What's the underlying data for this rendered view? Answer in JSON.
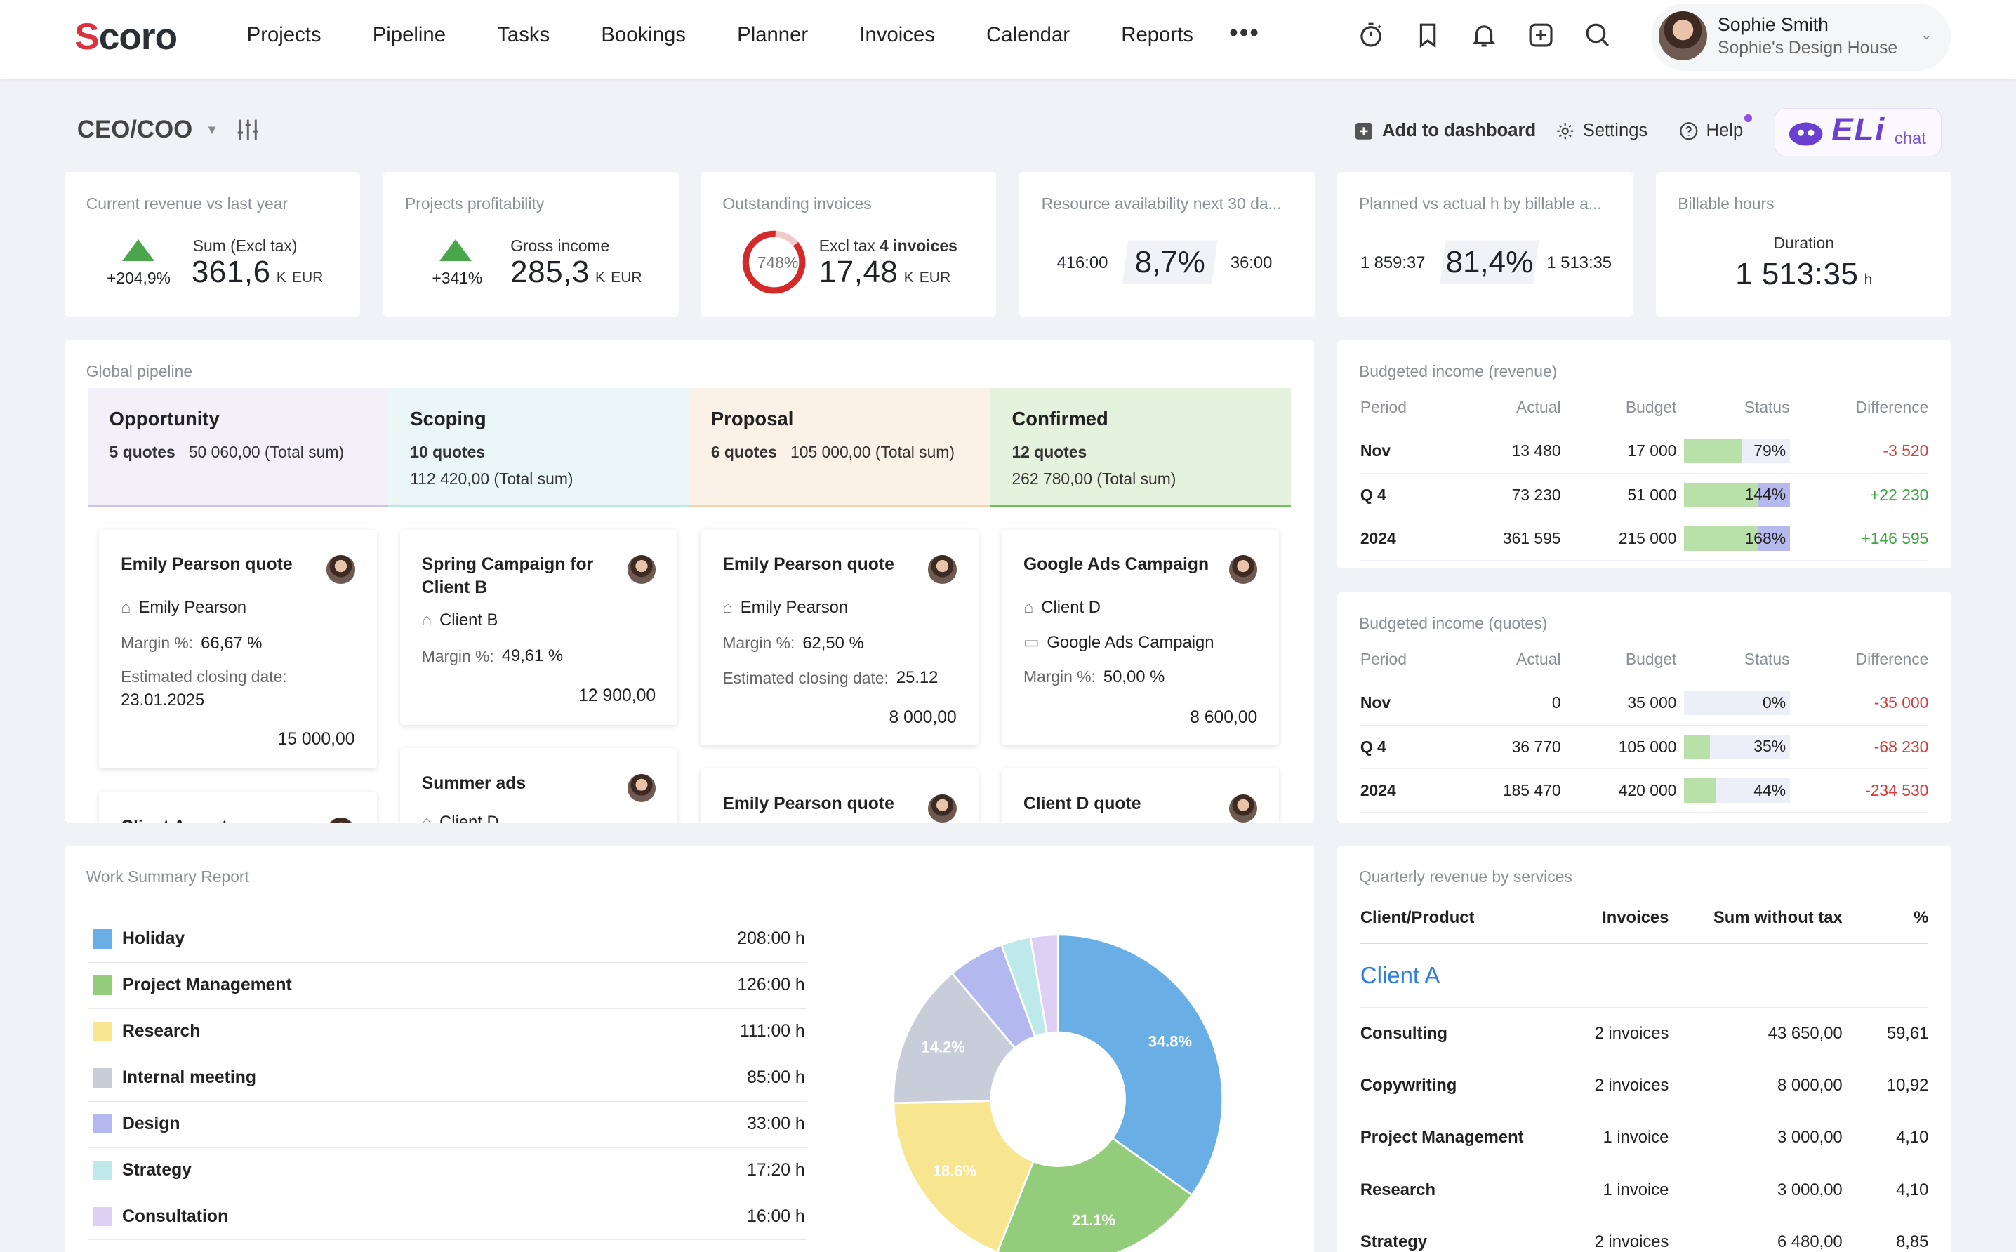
{
  "nav": {
    "logo": "Scoro",
    "items": [
      "Projects",
      "Pipeline",
      "Tasks",
      "Bookings",
      "Planner",
      "Invoices",
      "Calendar",
      "Reports"
    ],
    "more": "•••"
  },
  "user": {
    "name": "Sophie Smith",
    "company": "Sophie's Design House"
  },
  "dashboard": {
    "title": "CEO/COO",
    "add": "Add to dashboard",
    "settings": "Settings",
    "help": "Help",
    "eli": "ELi",
    "eli_sub": "chat"
  },
  "kpis": [
    {
      "title": "Current revenue vs last year",
      "change": "+204,9%",
      "label": "Sum (Excl tax)",
      "value": "361,6",
      "unit": "K",
      "currency": "EUR"
    },
    {
      "title": "Projects profitability",
      "change": "+341%",
      "label": "Gross income",
      "value": "285,3",
      "unit": "K",
      "currency": "EUR"
    },
    {
      "title": "Outstanding invoices",
      "ring": "748%",
      "label_pre": "Excl tax",
      "label_bold": "4 invoices",
      "value": "17,48",
      "unit": "K",
      "currency": "EUR"
    },
    {
      "title": "Resource availability next 30 da...",
      "left": "416:00",
      "value": "8,7%",
      "right": "36:00"
    },
    {
      "title": "Planned vs actual h by billable a...",
      "left": "1 859:37",
      "value": "81,4%",
      "right": "1 513:35"
    },
    {
      "title": "Billable hours",
      "label": "Duration",
      "value": "1 513:35",
      "unit": "h"
    }
  ],
  "pipeline": {
    "title": "Global pipeline",
    "columns": [
      {
        "name": "Opportunity",
        "count": "5 quotes",
        "sum": "50 060,00 (Total sum)"
      },
      {
        "name": "Scoping",
        "count": "10 quotes",
        "sum": "112 420,00 (Total sum)"
      },
      {
        "name": "Proposal",
        "count": "6 quotes",
        "sum": "105 000,00 (Total sum)"
      },
      {
        "name": "Confirmed",
        "count": "12 quotes",
        "sum": "262 780,00 (Total sum)"
      }
    ],
    "cards": [
      {
        "title": "Emily Pearson quote",
        "client": "Emily Pearson",
        "margin_label": "Margin %:",
        "margin": "66,67 %",
        "close_label": "Estimated closing date:",
        "close": "23.01.2025",
        "amount": "15 000,00"
      },
      {
        "title": "Client A quote"
      },
      {
        "title": "Spring Campaign for Client B",
        "client": "Client B",
        "margin_label": "Margin %:",
        "margin": "49,61 %",
        "amount": "12 900,00"
      },
      {
        "title": "Summer ads",
        "client": "Client D"
      },
      {
        "title": "Emily Pearson quote",
        "client": "Emily Pearson",
        "margin_label": "Margin %:",
        "margin": "62,50 %",
        "close_label": "Estimated closing date:",
        "close": "25.12",
        "amount": "8 000,00"
      },
      {
        "title": "Emily Pearson quote"
      },
      {
        "title": "Google Ads Campaign",
        "client": "Client D",
        "project": "Google Ads Campaign",
        "margin_label": "Margin %:",
        "margin": "50,00 %",
        "amount": "8 600,00"
      },
      {
        "title": "Client D quote"
      }
    ]
  },
  "budget_revenue": {
    "title": "Budgeted income (revenue)",
    "headers": [
      "Period",
      "Actual",
      "Budget",
      "Status",
      "Difference"
    ],
    "rows": [
      {
        "period": "Nov",
        "actual": "13 480",
        "budget": "17 000",
        "status": "79%",
        "pct": 79,
        "diff": "-3 520"
      },
      {
        "period": "Q 4",
        "actual": "73 230",
        "budget": "51 000",
        "status": "144%",
        "pct": 144,
        "diff": "+22 230"
      },
      {
        "period": "2024",
        "actual": "361 595",
        "budget": "215 000",
        "status": "168%",
        "pct": 168,
        "diff": "+146 595"
      }
    ]
  },
  "budget_quotes": {
    "title": "Budgeted income (quotes)",
    "headers": [
      "Period",
      "Actual",
      "Budget",
      "Status",
      "Difference"
    ],
    "rows": [
      {
        "period": "Nov",
        "actual": "0",
        "budget": "35 000",
        "status": "0%",
        "pct": 0,
        "diff": "-35 000"
      },
      {
        "period": "Q 4",
        "actual": "36 770",
        "budget": "105 000",
        "status": "35%",
        "pct": 35,
        "diff": "-68 230"
      },
      {
        "period": "2024",
        "actual": "185 470",
        "budget": "420 000",
        "status": "44%",
        "pct": 44,
        "diff": "-234 530"
      }
    ]
  },
  "work_summary": {
    "title": "Work Summary Report",
    "rows": [
      {
        "name": "Holiday",
        "value": "208:00 h",
        "color": "#6aaee6"
      },
      {
        "name": "Project Management",
        "value": "126:00 h",
        "color": "#93cc7a"
      },
      {
        "name": "Research",
        "value": "111:00 h",
        "color": "#f7e58f"
      },
      {
        "name": "Internal meeting",
        "value": "85:00 h",
        "color": "#c8ced9"
      },
      {
        "name": "Design",
        "value": "33:00 h",
        "color": "#b3b8ef"
      },
      {
        "name": "Strategy",
        "value": "17:20 h",
        "color": "#bde9ea"
      },
      {
        "name": "Consultation",
        "value": "16:00 h",
        "color": "#ddd0f4"
      }
    ]
  },
  "chart_data": {
    "type": "pie",
    "labels": [
      "Holiday",
      "Project Management",
      "Research",
      "Internal meeting",
      "Design",
      "Strategy",
      "Consultation"
    ],
    "values": [
      208,
      126,
      111,
      85,
      33,
      17.33,
      16
    ],
    "shown_labels": [
      "34.8%",
      "21.1%",
      "18.6%",
      "14.2%",
      "",
      "",
      ""
    ],
    "colors": [
      "#6aaee6",
      "#93cc7a",
      "#f7e58f",
      "#c8ced9",
      "#b3b8ef",
      "#bde9ea",
      "#ddd0f4"
    ]
  },
  "quarterly": {
    "title": "Quarterly revenue by services",
    "headers": [
      "Client/Product",
      "Invoices",
      "Sum without tax",
      "%"
    ],
    "client": "Client A",
    "rows": [
      {
        "name": "Consulting",
        "invoices": "2 invoices",
        "sum": "43 650,00",
        "pct": "59,61"
      },
      {
        "name": "Copywriting",
        "invoices": "2 invoices",
        "sum": "8 000,00",
        "pct": "10,92"
      },
      {
        "name": "Project Management",
        "invoices": "1 invoice",
        "sum": "3 000,00",
        "pct": "4,10"
      },
      {
        "name": "Research",
        "invoices": "1 invoice",
        "sum": "3 000,00",
        "pct": "4,10"
      },
      {
        "name": "Strategy",
        "invoices": "2 invoices",
        "sum": "6 480,00",
        "pct": "8,85"
      }
    ]
  },
  "colors": {
    "accent": "#2f7de1",
    "brand": "#d9333f",
    "positive": "#3aa541",
    "negative": "#d63a3a"
  }
}
